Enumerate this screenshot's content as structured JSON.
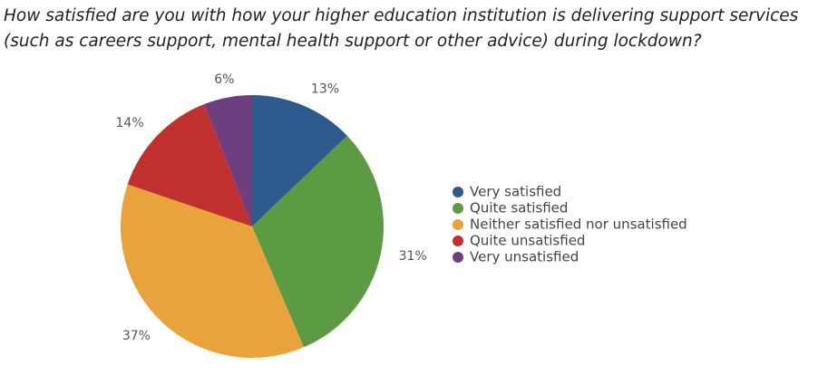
{
  "chart_data": {
    "type": "pie",
    "title": [
      "How satisfied are you with how your higher education institution is delivering support services",
      "(such as careers support, mental health support or other advice) during lockdown?"
    ],
    "categories": [
      "Very satisfied",
      "Quite satisfied",
      "Neither satisfied nor unsatisfied",
      "Quite unsatisfied",
      "Very unsatisfied"
    ],
    "values": [
      13,
      31,
      37,
      14,
      6
    ],
    "value_labels": [
      "13%",
      "31%",
      "37%",
      "14%",
      "6%"
    ],
    "colors": [
      "#2e5a8e",
      "#5c9a44",
      "#e8a33d",
      "#c0302e",
      "#6d3f7f"
    ],
    "legend": "right"
  }
}
